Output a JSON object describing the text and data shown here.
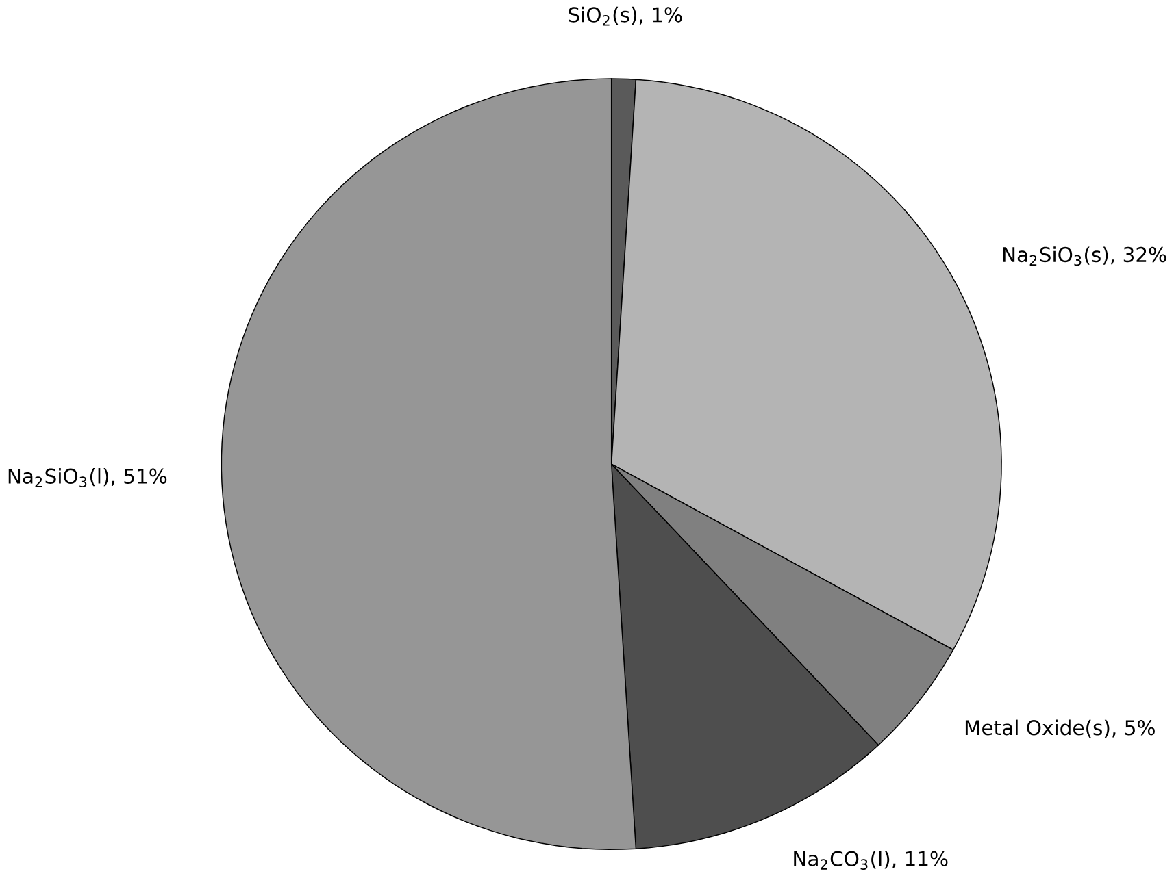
{
  "chart_data": {
    "type": "pie",
    "categories": [
      "SiO$_{2}$(s), 1%",
      "Na$_{2}$SiO$_{3}$(s), 32%",
      "Metal Oxide(s), 5%",
      "Na$_{2}$CO$_{3}$(l), 11%",
      "Na$_{2}$SiO$_{3}$(l), 51%"
    ],
    "values": [
      1,
      32,
      5,
      11,
      51
    ],
    "colors": [
      "#5a5a5a",
      "#b4b4b4",
      "#808080",
      "#4e4e4e",
      "#969696"
    ]
  }
}
